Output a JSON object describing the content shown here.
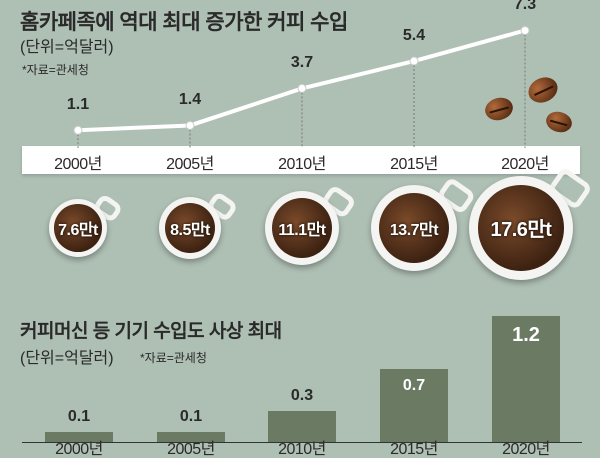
{
  "chart_data": [
    {
      "type": "line",
      "title": "홈카페족에 역대 최대 증가한 커피 수입",
      "unit": "(단위=억달러)",
      "source": "*자료=관세청",
      "categories": [
        "2000년",
        "2005년",
        "2010년",
        "2015년",
        "2020년"
      ],
      "values": [
        1.1,
        1.4,
        3.7,
        5.4,
        7.3
      ],
      "value_labels": [
        "1.1",
        "1.4",
        "3.7",
        "5.4",
        "7.3"
      ],
      "volume_labels": [
        "7.6만t",
        "8.5만t",
        "11.1만t",
        "13.7만t",
        "17.6만t"
      ],
      "volumes": [
        7.6,
        8.5,
        11.1,
        13.7,
        17.6
      ]
    },
    {
      "type": "bar",
      "title": "커피머신 등 기기 수입도 사상 최대",
      "unit": "(단위=억달러)",
      "source": "*자료=관세청",
      "categories": [
        "2000년",
        "2005년",
        "2010년",
        "2015년",
        "2020년"
      ],
      "values": [
        0.1,
        0.1,
        0.3,
        0.7,
        1.2
      ],
      "value_labels": [
        "0.1",
        "0.1",
        "0.3",
        "0.7",
        "1.2"
      ]
    }
  ],
  "colors": {
    "background": "#aebfb4",
    "bar": "#6a7a63",
    "line": "#ffffff"
  }
}
